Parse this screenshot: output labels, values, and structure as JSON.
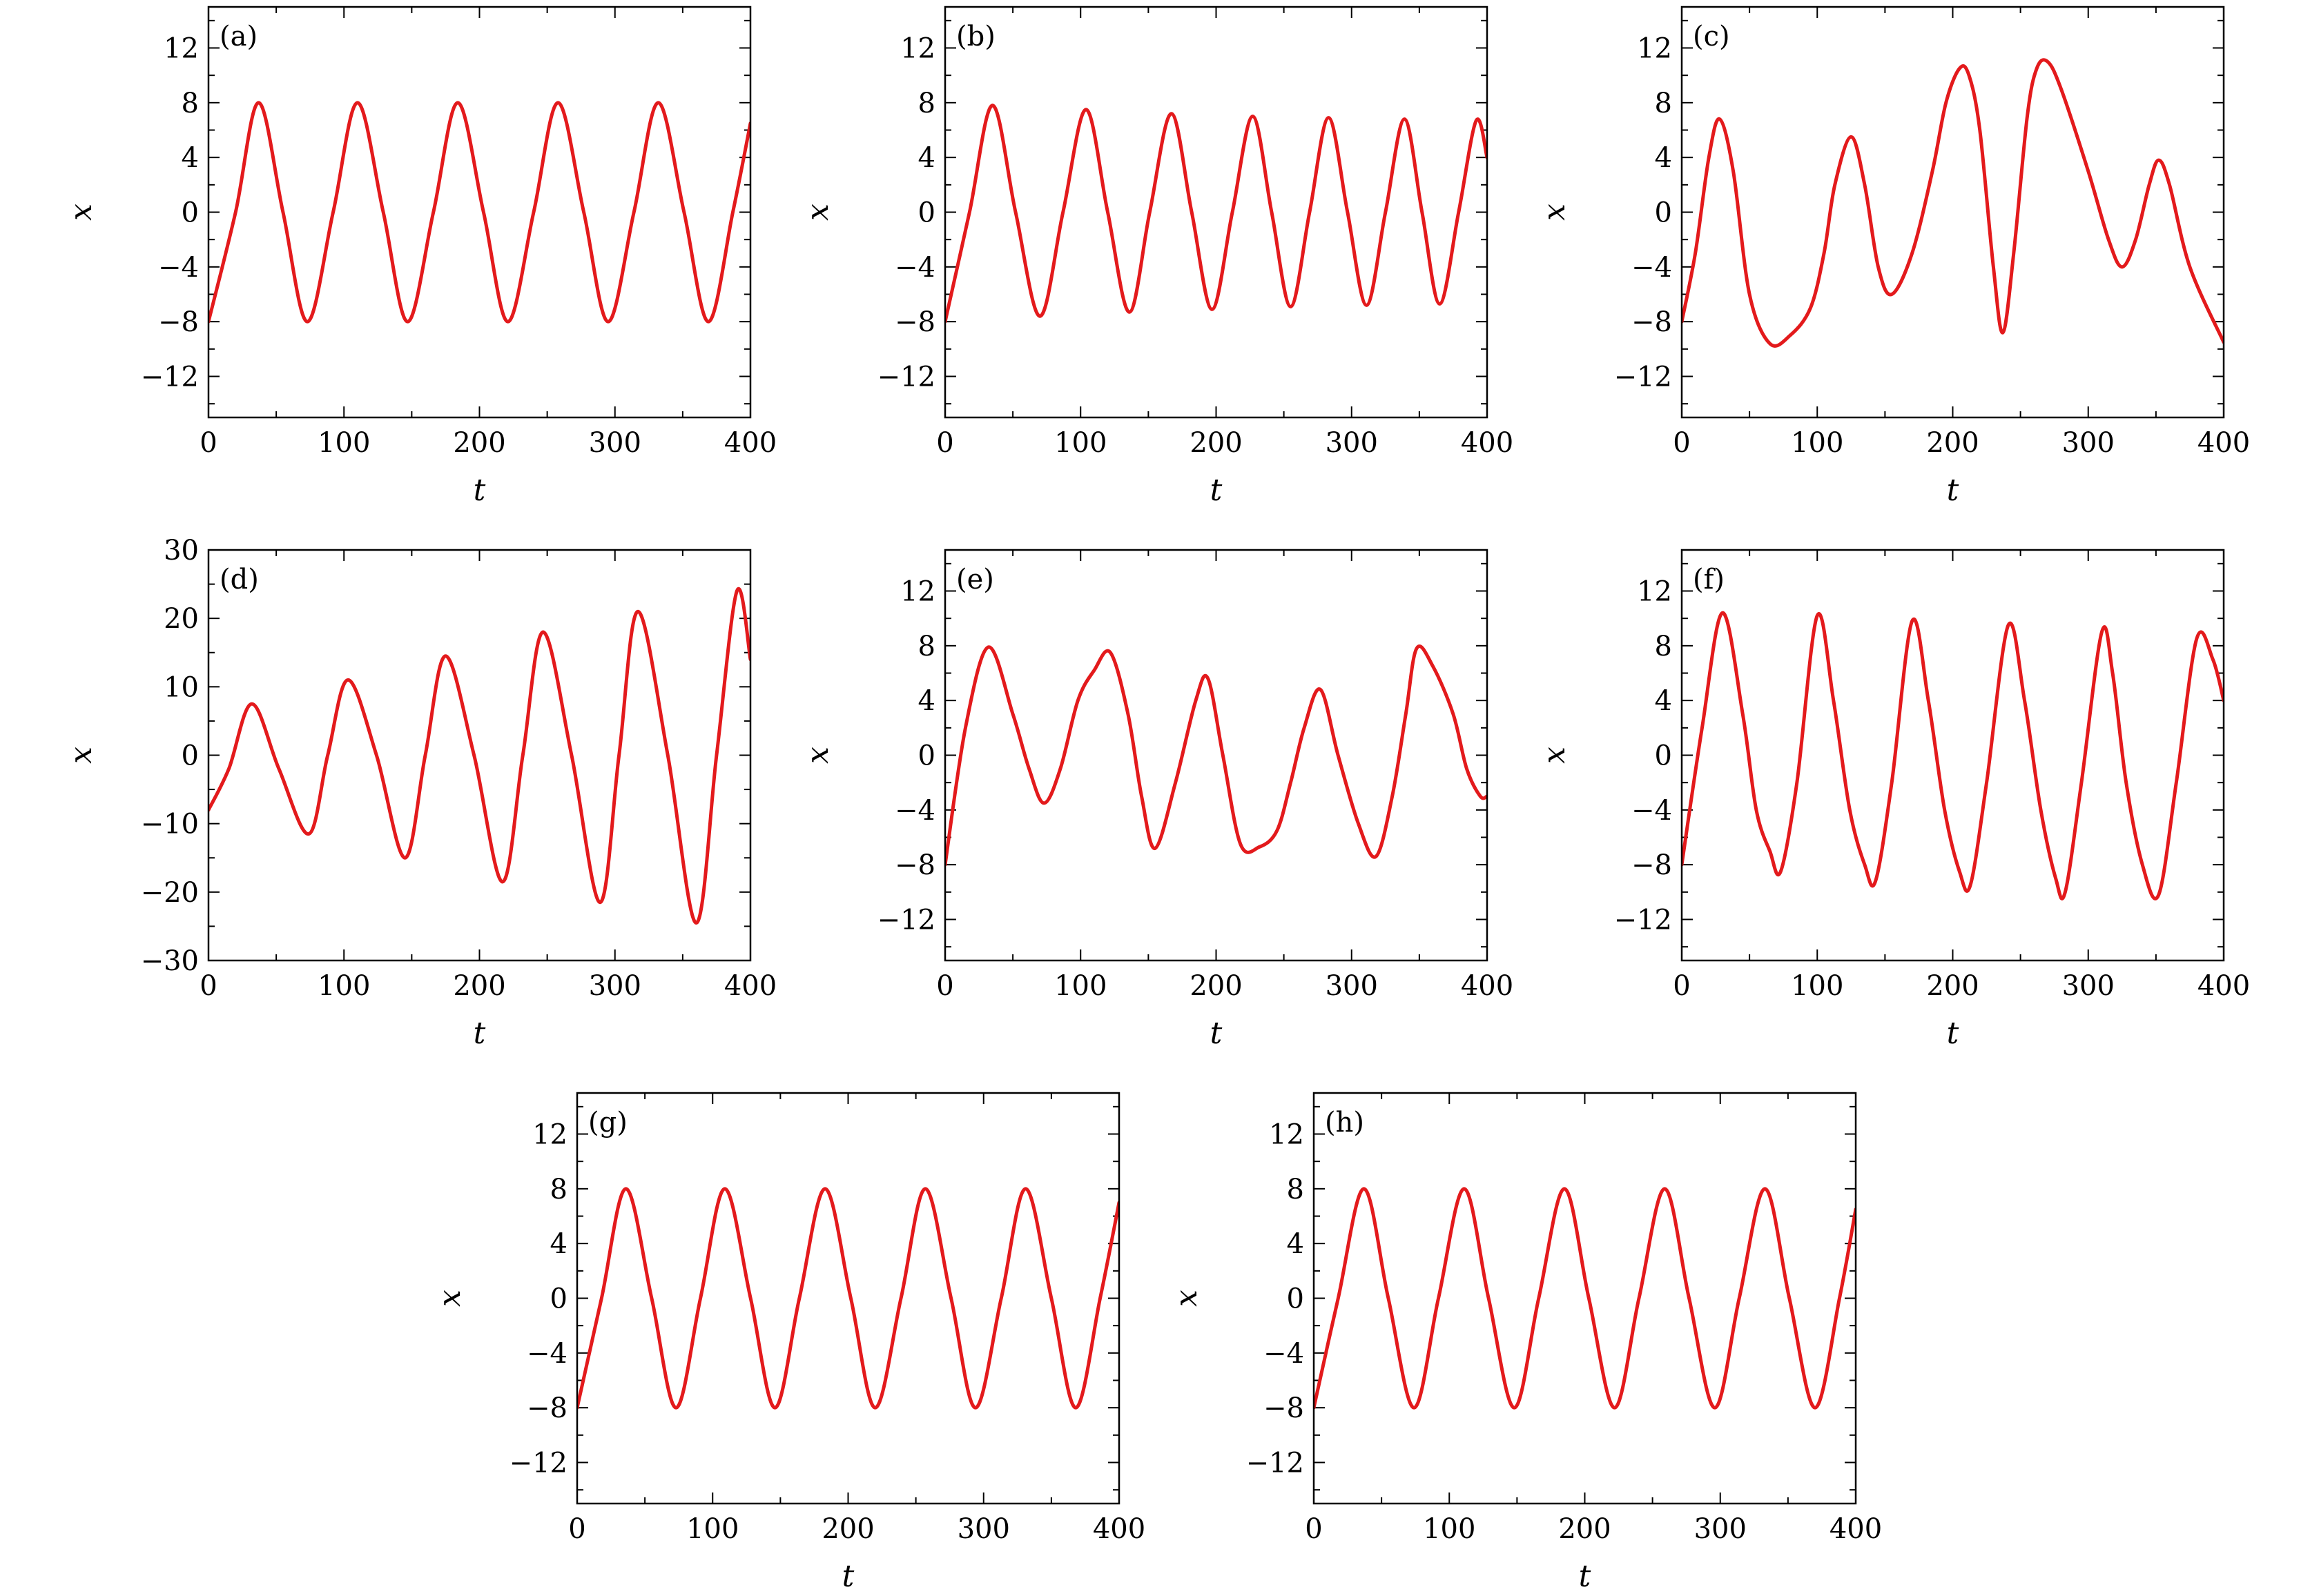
{
  "figure": {
    "panels_per_row": [
      3,
      3,
      2
    ]
  },
  "chart_data": [
    {
      "panel_label": "(a)",
      "type": "line",
      "xlabel": "t",
      "ylabel": "x",
      "xlim": [
        0,
        400
      ],
      "ylim": [
        -15,
        15
      ],
      "xticks": [
        0,
        100,
        200,
        300,
        400
      ],
      "yticks": [
        -12,
        -8,
        -4,
        0,
        4,
        8,
        12
      ],
      "grid": false,
      "color": "#e31a1c",
      "series": [
        {
          "x": [
            0,
            20,
            37,
            55,
            73,
            92,
            110,
            129,
            147,
            166,
            184,
            203,
            221,
            240,
            258,
            277,
            295,
            314,
            332,
            351,
            369,
            387,
            400
          ],
          "y": [
            -8,
            0,
            8,
            0,
            -8,
            0,
            8,
            0,
            -8,
            0,
            8,
            0,
            -8,
            0,
            8,
            0,
            -8,
            0,
            8,
            0,
            -8,
            0,
            6.5
          ]
        }
      ]
    },
    {
      "panel_label": "(b)",
      "type": "line",
      "xlabel": "t",
      "ylabel": "x",
      "xlim": [
        0,
        400
      ],
      "ylim": [
        -15,
        15
      ],
      "xticks": [
        0,
        100,
        200,
        300,
        400
      ],
      "yticks": [
        -12,
        -8,
        -4,
        0,
        4,
        8,
        12
      ],
      "grid": false,
      "color": "#e31a1c",
      "series": [
        {
          "x": [
            0,
            18,
            35,
            52,
            70,
            87,
            104,
            120,
            136,
            151,
            167,
            182,
            197,
            212,
            227,
            241,
            255,
            269,
            283,
            297,
            311,
            325,
            339,
            352,
            365,
            379,
            392,
            400
          ],
          "y": [
            -8,
            0,
            7.8,
            0,
            -7.6,
            0,
            7.5,
            0,
            -7.3,
            0,
            7.2,
            0,
            -7.1,
            0,
            7.0,
            0,
            -6.9,
            0,
            6.9,
            0,
            -6.8,
            0,
            6.8,
            0,
            -6.7,
            0,
            6.7,
            4
          ]
        }
      ]
    },
    {
      "panel_label": "(c)",
      "type": "line",
      "xlabel": "t",
      "ylabel": "x",
      "xlim": [
        0,
        400
      ],
      "ylim": [
        -15,
        15
      ],
      "xticks": [
        0,
        100,
        200,
        300,
        400
      ],
      "yticks": [
        -12,
        -8,
        -4,
        0,
        4,
        8,
        12
      ],
      "grid": false,
      "color": "#e31a1c",
      "series": [
        {
          "x": [
            0,
            10,
            20,
            28,
            38,
            50,
            65,
            80,
            95,
            105,
            113,
            125,
            135,
            145,
            155,
            170,
            185,
            195,
            205,
            212,
            220,
            230,
            237,
            245,
            255,
            262,
            270,
            280,
            300,
            315,
            325,
            335,
            345,
            352,
            360,
            375,
            400
          ],
          "y": [
            -8,
            -3,
            4,
            6.8,
            3,
            -6,
            -9.6,
            -9,
            -7,
            -3,
            2,
            5.5,
            2,
            -4,
            -6,
            -3,
            3,
            8,
            10.5,
            10,
            6,
            -4,
            -8.8,
            -3,
            7,
            10.5,
            11,
            9,
            3,
            -2,
            -4,
            -2,
            2,
            3.8,
            2,
            -4,
            -9.5
          ]
        }
      ]
    },
    {
      "panel_label": "(d)",
      "type": "line",
      "xlabel": "t",
      "ylabel": "x",
      "xlim": [
        0,
        400
      ],
      "ylim": [
        -30,
        30
      ],
      "xticks": [
        0,
        100,
        200,
        300,
        400
      ],
      "yticks": [
        -30,
        -20,
        -10,
        0,
        10,
        20,
        30
      ],
      "grid": false,
      "color": "#e31a1c",
      "series": [
        {
          "x": [
            0,
            15,
            32,
            52,
            74,
            88,
            103,
            124,
            145,
            160,
            175,
            196,
            217,
            232,
            247,
            268,
            289,
            303,
            317,
            339,
            360,
            375,
            390,
            400
          ],
          "y": [
            -8,
            -2,
            7.5,
            -2,
            -11.5,
            0,
            11,
            0,
            -15,
            0,
            14.5,
            0,
            -18.5,
            0,
            18,
            0,
            -21.5,
            0,
            21,
            0,
            -24.5,
            0,
            24,
            14
          ]
        }
      ]
    },
    {
      "panel_label": "(e)",
      "type": "line",
      "xlabel": "t",
      "ylabel": "x",
      "xlim": [
        0,
        400
      ],
      "ylim": [
        -15,
        15
      ],
      "xticks": [
        0,
        100,
        200,
        300,
        400
      ],
      "yticks": [
        -12,
        -8,
        -4,
        0,
        4,
        8,
        12
      ],
      "grid": false,
      "color": "#e31a1c",
      "series": [
        {
          "x": [
            0,
            15,
            32,
            50,
            62,
            73,
            85,
            98,
            110,
            122,
            135,
            145,
            155,
            170,
            185,
            194,
            205,
            218,
            232,
            245,
            255,
            265,
            277,
            290,
            305,
            318,
            330,
            340,
            348,
            360,
            375,
            385,
            395,
            400
          ],
          "y": [
            -8,
            2,
            7.9,
            3,
            -1,
            -3.5,
            -1,
            4,
            6.2,
            7.5,
            3,
            -3,
            -6.8,
            -2,
            4,
            5.6,
            0,
            -6.5,
            -6.7,
            -5.5,
            -2,
            2,
            4.8,
            0,
            -5,
            -7.4,
            -3,
            3,
            7.8,
            6.5,
            3,
            -1,
            -3,
            -3
          ]
        }
      ]
    },
    {
      "panel_label": "(f)",
      "type": "line",
      "xlabel": "t",
      "ylabel": "x",
      "xlim": [
        0,
        400
      ],
      "ylim": [
        -15,
        15
      ],
      "xticks": [
        0,
        100,
        200,
        300,
        400
      ],
      "yticks": [
        -12,
        -8,
        -4,
        0,
        4,
        8,
        12
      ],
      "grid": false,
      "color": "#e31a1c",
      "series": [
        {
          "x": [
            0,
            15,
            30,
            45,
            55,
            65,
            73,
            85,
            100,
            112,
            124,
            135,
            143,
            155,
            170,
            182,
            194,
            205,
            213,
            225,
            241,
            253,
            265,
            276,
            283,
            295,
            310,
            318,
            328,
            340,
            352,
            365,
            380,
            392,
            400
          ],
          "y": [
            -8,
            2,
            10.4,
            3,
            -4,
            -7,
            -8.5,
            -2,
            10.2,
            4,
            -4,
            -8,
            -9.2,
            -2,
            9.8,
            4,
            -4,
            -8.5,
            -9.5,
            -2,
            9.5,
            4,
            -4,
            -9,
            -10,
            -2,
            9,
            6,
            -2,
            -8,
            -10.2,
            -2,
            8.5,
            7,
            4
          ]
        }
      ]
    },
    {
      "panel_label": "(g)",
      "type": "line",
      "xlabel": "t",
      "ylabel": "x",
      "xlim": [
        0,
        400
      ],
      "ylim": [
        -15,
        15
      ],
      "xticks": [
        0,
        100,
        200,
        300,
        400
      ],
      "yticks": [
        -12,
        -8,
        -4,
        0,
        4,
        8,
        12
      ],
      "grid": false,
      "color": "#e31a1c",
      "series": [
        {
          "x": [
            0,
            18,
            36,
            55,
            73,
            91,
            109,
            128,
            146,
            164,
            183,
            202,
            220,
            239,
            257,
            276,
            294,
            313,
            331,
            350,
            368,
            386,
            400
          ],
          "y": [
            -8,
            0,
            8,
            0,
            -8,
            0,
            8,
            0,
            -8,
            0,
            8,
            0,
            -8,
            0,
            8,
            0,
            -8,
            0,
            8,
            0,
            -8,
            0,
            7
          ]
        }
      ]
    },
    {
      "panel_label": "(h)",
      "type": "line",
      "xlabel": "t",
      "ylabel": "x",
      "xlim": [
        0,
        400
      ],
      "ylim": [
        -15,
        15
      ],
      "xticks": [
        0,
        100,
        200,
        300,
        400
      ],
      "yticks": [
        -12,
        -8,
        -4,
        0,
        4,
        8,
        12
      ],
      "grid": false,
      "color": "#e31a1c",
      "series": [
        {
          "x": [
            0,
            18,
            37,
            55,
            74,
            92,
            111,
            129,
            148,
            166,
            185,
            203,
            222,
            240,
            259,
            277,
            296,
            314,
            333,
            351,
            370,
            388,
            400
          ],
          "y": [
            -8,
            0,
            8,
            0,
            -8,
            0,
            8,
            0,
            -8,
            0,
            8,
            0,
            -8,
            0,
            8,
            0,
            -8,
            0,
            8,
            0,
            -8,
            0,
            6.5
          ]
        }
      ]
    }
  ]
}
